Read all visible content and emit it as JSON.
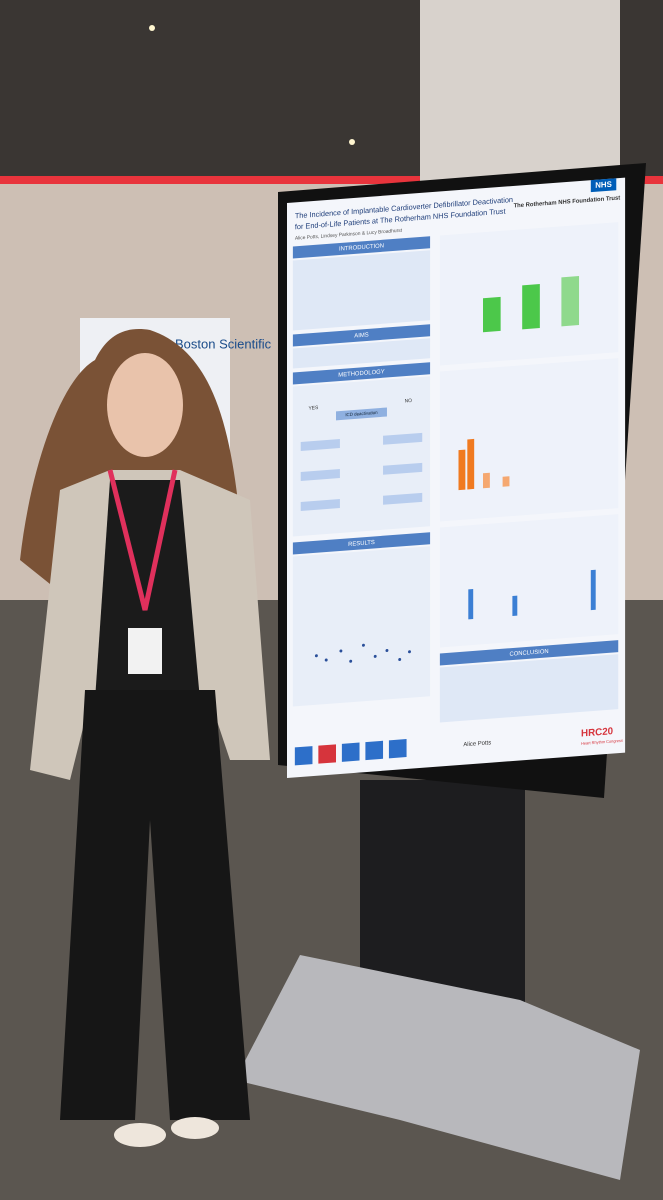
{
  "poster": {
    "logo": "NHS",
    "trust": "The Rotherham NHS Foundation Trust",
    "title_line1": "The Incidence of Implantable Cardioverter Defibrillator Deactivation",
    "title_line2": "for End-of-Life Patients at The Rotherham NHS Foundation Trust",
    "authors": "Alice Potts, Lindsey Parkinson & Lucy Broadhurst",
    "sections": [
      "INTRODUCTION",
      "AIMS",
      "METHODOLOGY",
      "RESULTS",
      "CONCLUSION"
    ],
    "flow": {
      "yes": "YES",
      "no": "NO",
      "start": "ICD deactivation"
    },
    "presenter": "Alice Potts",
    "congress": "HRC20",
    "congress_name": "Heart Rhythm Congress"
  },
  "banner": "Boston Scientific"
}
